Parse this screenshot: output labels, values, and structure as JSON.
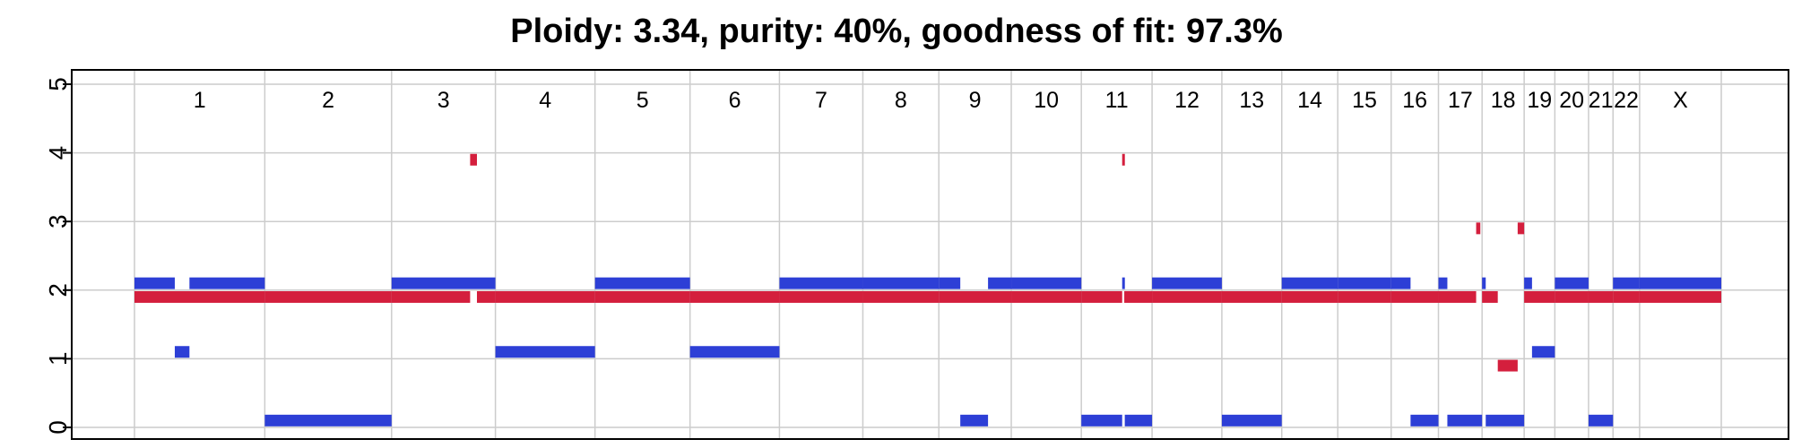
{
  "chart_data": {
    "type": "segment",
    "title": "Ploidy: 3.34, purity: 40%, goodness of fit: 97.3%",
    "xlabel": "",
    "ylabel": "",
    "ylim": [
      0,
      5
    ],
    "yticks": [
      "0",
      "1",
      "2",
      "3",
      "4",
      "5"
    ],
    "grid": true,
    "chromosomes": [
      {
        "name": "1",
        "length": 248.9
      },
      {
        "name": "2",
        "length": 242.2
      },
      {
        "name": "3",
        "length": 198.3
      },
      {
        "name": "4",
        "length": 190.2
      },
      {
        "name": "5",
        "length": 181.5
      },
      {
        "name": "6",
        "length": 170.8
      },
      {
        "name": "7",
        "length": 159.3
      },
      {
        "name": "8",
        "length": 145.1
      },
      {
        "name": "9",
        "length": 138.4
      },
      {
        "name": "10",
        "length": 133.8
      },
      {
        "name": "11",
        "length": 135.1
      },
      {
        "name": "12",
        "length": 133.3
      },
      {
        "name": "13",
        "length": 114.4
      },
      {
        "name": "14",
        "length": 107.0
      },
      {
        "name": "15",
        "length": 102.0
      },
      {
        "name": "16",
        "length": 90.3
      },
      {
        "name": "17",
        "length": 83.3
      },
      {
        "name": "18",
        "length": 80.4
      },
      {
        "name": "19",
        "length": 58.6
      },
      {
        "name": "20",
        "length": 64.4
      },
      {
        "name": "21",
        "length": 46.7
      },
      {
        "name": "22",
        "length": 50.8
      },
      {
        "name": "X",
        "length": 156.0
      }
    ],
    "series": [
      {
        "color": "#2d3fd6",
        "segments": [
          {
            "chrom": "1",
            "start": 0,
            "end": 77,
            "value": 2.1
          },
          {
            "chrom": "1",
            "start": 77,
            "end": 105,
            "value": 1.1
          },
          {
            "chrom": "1",
            "start": 105,
            "end": 248.9,
            "value": 2.1
          },
          {
            "chrom": "2",
            "start": 0,
            "end": 242.2,
            "value": 0.1
          },
          {
            "chrom": "3",
            "start": 0,
            "end": 198.3,
            "value": 2.1
          },
          {
            "chrom": "4",
            "start": 0,
            "end": 190.2,
            "value": 1.1
          },
          {
            "chrom": "5",
            "start": 0,
            "end": 181.5,
            "value": 2.1
          },
          {
            "chrom": "6",
            "start": 0,
            "end": 170.8,
            "value": 1.1
          },
          {
            "chrom": "7",
            "start": 0,
            "end": 159.3,
            "value": 2.1
          },
          {
            "chrom": "8",
            "start": 0,
            "end": 145.1,
            "value": 2.1
          },
          {
            "chrom": "9",
            "start": 0,
            "end": 41,
            "value": 2.1
          },
          {
            "chrom": "9",
            "start": 41,
            "end": 94,
            "value": 0.1
          },
          {
            "chrom": "9",
            "start": 94,
            "end": 138.4,
            "value": 2.1
          },
          {
            "chrom": "10",
            "start": 0,
            "end": 133.8,
            "value": 2.1
          },
          {
            "chrom": "11",
            "start": 0,
            "end": 78,
            "value": 0.1
          },
          {
            "chrom": "11",
            "start": 78,
            "end": 83,
            "value": 2.1
          },
          {
            "chrom": "11",
            "start": 83,
            "end": 135.1,
            "value": 0.1
          },
          {
            "chrom": "12",
            "start": 0,
            "end": 133.3,
            "value": 2.1
          },
          {
            "chrom": "13",
            "start": 0,
            "end": 114.4,
            "value": 0.1
          },
          {
            "chrom": "14",
            "start": 0,
            "end": 107.0,
            "value": 2.1
          },
          {
            "chrom": "15",
            "start": 0,
            "end": 102.0,
            "value": 2.1
          },
          {
            "chrom": "16",
            "start": 0,
            "end": 37,
            "value": 2.1
          },
          {
            "chrom": "16",
            "start": 37,
            "end": 90.3,
            "value": 0.1
          },
          {
            "chrom": "17",
            "start": 0,
            "end": 17,
            "value": 2.1
          },
          {
            "chrom": "17",
            "start": 17,
            "end": 83.3,
            "value": 0.1
          },
          {
            "chrom": "18",
            "start": 0,
            "end": 7,
            "value": 2.1
          },
          {
            "chrom": "18",
            "start": 7,
            "end": 80.4,
            "value": 0.1
          },
          {
            "chrom": "19",
            "start": 0,
            "end": 15,
            "value": 2.1
          },
          {
            "chrom": "19",
            "start": 15,
            "end": 58.6,
            "value": 1.1
          },
          {
            "chrom": "20",
            "start": 0,
            "end": 64.4,
            "value": 2.1
          },
          {
            "chrom": "21",
            "start": 0,
            "end": 46.7,
            "value": 0.1
          },
          {
            "chrom": "22",
            "start": 0,
            "end": 50.8,
            "value": 2.1
          },
          {
            "chrom": "X",
            "start": 0,
            "end": 156.0,
            "value": 2.1
          }
        ]
      },
      {
        "color": "#d41f3d",
        "segments": [
          {
            "chrom": "1",
            "start": 0,
            "end": 248.9,
            "value": 1.9
          },
          {
            "chrom": "2",
            "start": 0,
            "end": 242.2,
            "value": 1.9
          },
          {
            "chrom": "3",
            "start": 0,
            "end": 150,
            "value": 1.9
          },
          {
            "chrom": "3",
            "start": 150,
            "end": 163,
            "value": 3.9
          },
          {
            "chrom": "3",
            "start": 163,
            "end": 198.3,
            "value": 1.9
          },
          {
            "chrom": "4",
            "start": 0,
            "end": 190.2,
            "value": 1.9
          },
          {
            "chrom": "5",
            "start": 0,
            "end": 181.5,
            "value": 1.9
          },
          {
            "chrom": "6",
            "start": 0,
            "end": 170.8,
            "value": 1.9
          },
          {
            "chrom": "7",
            "start": 0,
            "end": 159.3,
            "value": 1.9
          },
          {
            "chrom": "8",
            "start": 0,
            "end": 145.1,
            "value": 1.9
          },
          {
            "chrom": "9",
            "start": 0,
            "end": 138.4,
            "value": 1.9
          },
          {
            "chrom": "10",
            "start": 0,
            "end": 133.8,
            "value": 1.9
          },
          {
            "chrom": "11",
            "start": 0,
            "end": 78,
            "value": 1.9
          },
          {
            "chrom": "11",
            "start": 78,
            "end": 82,
            "value": 3.9
          },
          {
            "chrom": "11",
            "start": 82,
            "end": 135.1,
            "value": 1.9
          },
          {
            "chrom": "12",
            "start": 0,
            "end": 133.3,
            "value": 1.9
          },
          {
            "chrom": "13",
            "start": 0,
            "end": 114.4,
            "value": 1.9
          },
          {
            "chrom": "14",
            "start": 0,
            "end": 107.0,
            "value": 1.9
          },
          {
            "chrom": "15",
            "start": 0,
            "end": 102.0,
            "value": 1.9
          },
          {
            "chrom": "16",
            "start": 0,
            "end": 90.3,
            "value": 1.9
          },
          {
            "chrom": "17",
            "start": 0,
            "end": 72,
            "value": 1.9
          },
          {
            "chrom": "17",
            "start": 72,
            "end": 80,
            "value": 2.9
          },
          {
            "chrom": "18",
            "start": 0,
            "end": 30,
            "value": 1.9
          },
          {
            "chrom": "18",
            "start": 30,
            "end": 68,
            "value": 0.9
          },
          {
            "chrom": "18",
            "start": 68,
            "end": 80.4,
            "value": 2.9
          },
          {
            "chrom": "19",
            "start": 0,
            "end": 58.6,
            "value": 1.9
          },
          {
            "chrom": "20",
            "start": 0,
            "end": 64.4,
            "value": 1.9
          },
          {
            "chrom": "21",
            "start": 0,
            "end": 46.7,
            "value": 1.9
          },
          {
            "chrom": "22",
            "start": 0,
            "end": 50.8,
            "value": 1.9
          },
          {
            "chrom": "X",
            "start": 0,
            "end": 156.0,
            "value": 1.9
          }
        ]
      }
    ]
  }
}
